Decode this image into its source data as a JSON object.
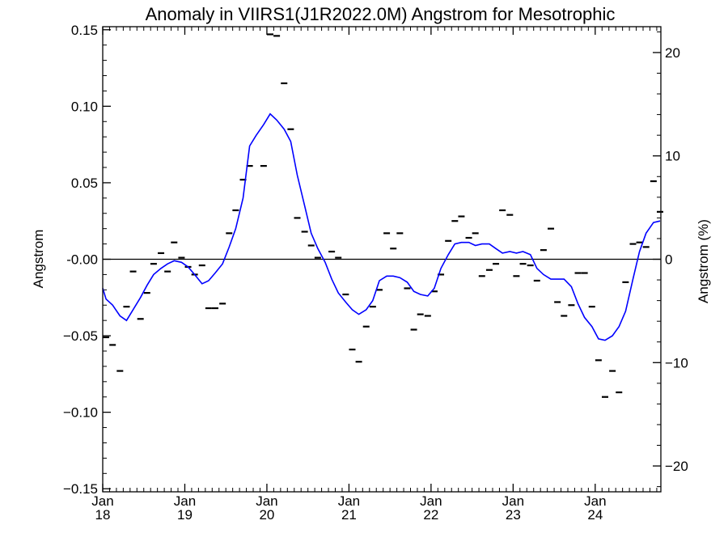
{
  "chart_data": {
    "type": "line",
    "title": "Anomaly in VIIRS1(J1R2022.0M) Angstrom for Mesotrophic",
    "ylabel_left": "Angstrom",
    "ylabel_right": "Angstrom (%)",
    "ylim": [
      -0.152,
      0.152
    ],
    "ylim_right": [
      -22.5,
      22.5
    ],
    "xlim": [
      2018.0,
      2024.8
    ],
    "left_ticks": [
      {
        "v": 0.15,
        "label": "0.15"
      },
      {
        "v": 0.1,
        "label": "0.10"
      },
      {
        "v": 0.05,
        "label": "0.05"
      },
      {
        "v": 0.0,
        "label": "-0.00"
      },
      {
        "v": -0.05,
        "label": "−0.05"
      },
      {
        "v": -0.1,
        "label": "−0.10"
      },
      {
        "v": -0.15,
        "label": "−0.15"
      }
    ],
    "right_ticks": [
      {
        "v": 20,
        "label": "20"
      },
      {
        "v": 10,
        "label": "10"
      },
      {
        "v": 0,
        "label": "0"
      },
      {
        "v": -10,
        "label": "−10"
      },
      {
        "v": -20,
        "label": "−20"
      }
    ],
    "x_ticks": [
      {
        "v": 2018,
        "line1": "Jan",
        "line2": "18"
      },
      {
        "v": 2019,
        "line1": "Jan",
        "line2": "19"
      },
      {
        "v": 2020,
        "line1": "Jan",
        "line2": "20"
      },
      {
        "v": 2021,
        "line1": "Jan",
        "line2": "21"
      },
      {
        "v": 2022,
        "line1": "Jan",
        "line2": "22"
      },
      {
        "v": 2023,
        "line1": "Jan",
        "line2": "23"
      },
      {
        "v": 2024,
        "line1": "Jan",
        "line2": "24"
      }
    ],
    "reference_line": 0,
    "series": [
      {
        "style": "markers",
        "color": "#000000",
        "points": [
          [
            2018.04,
            -0.051
          ],
          [
            2018.12,
            -0.056
          ],
          [
            2018.21,
            -0.073
          ],
          [
            2018.29,
            -0.031
          ],
          [
            2018.37,
            -0.008
          ],
          [
            2018.46,
            -0.039
          ],
          [
            2018.54,
            -0.022
          ],
          [
            2018.62,
            -0.003
          ],
          [
            2018.71,
            0.004
          ],
          [
            2018.79,
            -0.008
          ],
          [
            2018.87,
            0.011
          ],
          [
            2018.96,
            0.001
          ],
          [
            2019.04,
            -0.005
          ],
          [
            2019.12,
            -0.01
          ],
          [
            2019.21,
            -0.004
          ],
          [
            2019.29,
            -0.032
          ],
          [
            2019.37,
            -0.032
          ],
          [
            2019.46,
            -0.029
          ],
          [
            2019.54,
            0.017
          ],
          [
            2019.62,
            0.032
          ],
          [
            2019.71,
            0.052
          ],
          [
            2019.79,
            0.061
          ],
          [
            2019.96,
            0.061
          ],
          [
            2020.04,
            0.147
          ],
          [
            2020.12,
            0.146
          ],
          [
            2020.21,
            0.115
          ],
          [
            2020.29,
            0.085
          ],
          [
            2020.37,
            0.027
          ],
          [
            2020.46,
            0.018
          ],
          [
            2020.54,
            0.009
          ],
          [
            2020.62,
            0.001
          ],
          [
            2020.79,
            0.005
          ],
          [
            2020.87,
            0.001
          ],
          [
            2020.96,
            -0.023
          ],
          [
            2021.04,
            -0.059
          ],
          [
            2021.12,
            -0.067
          ],
          [
            2021.21,
            -0.044
          ],
          [
            2021.29,
            -0.031
          ],
          [
            2021.37,
            -0.02
          ],
          [
            2021.46,
            0.017
          ],
          [
            2021.54,
            0.007
          ],
          [
            2021.62,
            0.017
          ],
          [
            2021.71,
            -0.019
          ],
          [
            2021.79,
            -0.046
          ],
          [
            2021.87,
            -0.036
          ],
          [
            2021.96,
            -0.037
          ],
          [
            2022.04,
            -0.021
          ],
          [
            2022.12,
            -0.01
          ],
          [
            2022.21,
            0.012
          ],
          [
            2022.29,
            0.025
          ],
          [
            2022.37,
            0.028
          ],
          [
            2022.46,
            0.014
          ],
          [
            2022.54,
            0.017
          ],
          [
            2022.62,
            -0.011
          ],
          [
            2022.71,
            -0.007
          ],
          [
            2022.79,
            -0.003
          ],
          [
            2022.87,
            0.032
          ],
          [
            2022.96,
            0.029
          ],
          [
            2023.04,
            -0.011
          ],
          [
            2023.12,
            -0.003
          ],
          [
            2023.21,
            -0.004
          ],
          [
            2023.29,
            -0.014
          ],
          [
            2023.37,
            0.006
          ],
          [
            2023.46,
            0.02
          ],
          [
            2023.54,
            -0.028
          ],
          [
            2023.62,
            -0.037
          ],
          [
            2023.71,
            -0.03
          ],
          [
            2023.79,
            -0.009
          ],
          [
            2023.87,
            -0.009
          ],
          [
            2023.96,
            -0.031
          ],
          [
            2024.04,
            -0.066
          ],
          [
            2024.12,
            -0.09
          ],
          [
            2024.21,
            -0.073
          ],
          [
            2024.29,
            -0.087
          ],
          [
            2024.37,
            -0.015
          ],
          [
            2024.46,
            0.01
          ],
          [
            2024.54,
            0.011
          ],
          [
            2024.62,
            0.008
          ],
          [
            2024.71,
            0.051
          ],
          [
            2024.79,
            0.031
          ]
        ]
      },
      {
        "style": "line",
        "color": "#0000ff",
        "points": [
          [
            2018.0,
            -0.019
          ],
          [
            2018.04,
            -0.026
          ],
          [
            2018.12,
            -0.03
          ],
          [
            2018.21,
            -0.037
          ],
          [
            2018.29,
            -0.04
          ],
          [
            2018.37,
            -0.033
          ],
          [
            2018.46,
            -0.025
          ],
          [
            2018.54,
            -0.017
          ],
          [
            2018.62,
            -0.01
          ],
          [
            2018.71,
            -0.006
          ],
          [
            2018.79,
            -0.003
          ],
          [
            2018.87,
            -0.001
          ],
          [
            2018.96,
            -0.002
          ],
          [
            2019.04,
            -0.005
          ],
          [
            2019.12,
            -0.01
          ],
          [
            2019.21,
            -0.016
          ],
          [
            2019.29,
            -0.014
          ],
          [
            2019.37,
            -0.009
          ],
          [
            2019.46,
            -0.003
          ],
          [
            2019.54,
            0.008
          ],
          [
            2019.62,
            0.02
          ],
          [
            2019.71,
            0.04
          ],
          [
            2019.79,
            0.074
          ],
          [
            2019.87,
            0.081
          ],
          [
            2019.96,
            0.088
          ],
          [
            2020.04,
            0.095
          ],
          [
            2020.12,
            0.091
          ],
          [
            2020.21,
            0.085
          ],
          [
            2020.29,
            0.077
          ],
          [
            2020.37,
            0.055
          ],
          [
            2020.46,
            0.035
          ],
          [
            2020.54,
            0.017
          ],
          [
            2020.62,
            0.007
          ],
          [
            2020.71,
            -0.002
          ],
          [
            2020.79,
            -0.013
          ],
          [
            2020.87,
            -0.022
          ],
          [
            2020.96,
            -0.028
          ],
          [
            2021.04,
            -0.033
          ],
          [
            2021.12,
            -0.036
          ],
          [
            2021.21,
            -0.033
          ],
          [
            2021.29,
            -0.027
          ],
          [
            2021.37,
            -0.014
          ],
          [
            2021.46,
            -0.011
          ],
          [
            2021.54,
            -0.011
          ],
          [
            2021.62,
            -0.012
          ],
          [
            2021.71,
            -0.015
          ],
          [
            2021.79,
            -0.021
          ],
          [
            2021.87,
            -0.023
          ],
          [
            2021.96,
            -0.024
          ],
          [
            2022.04,
            -0.019
          ],
          [
            2022.12,
            -0.006
          ],
          [
            2022.21,
            0.003
          ],
          [
            2022.29,
            0.01
          ],
          [
            2022.37,
            0.011
          ],
          [
            2022.46,
            0.011
          ],
          [
            2022.54,
            0.009
          ],
          [
            2022.62,
            0.01
          ],
          [
            2022.71,
            0.01
          ],
          [
            2022.79,
            0.007
          ],
          [
            2022.87,
            0.004
          ],
          [
            2022.96,
            0.005
          ],
          [
            2023.04,
            0.004
          ],
          [
            2023.12,
            0.005
          ],
          [
            2023.21,
            0.003
          ],
          [
            2023.29,
            -0.006
          ],
          [
            2023.37,
            -0.01
          ],
          [
            2023.46,
            -0.013
          ],
          [
            2023.54,
            -0.013
          ],
          [
            2023.62,
            -0.013
          ],
          [
            2023.71,
            -0.018
          ],
          [
            2023.79,
            -0.029
          ],
          [
            2023.87,
            -0.038
          ],
          [
            2023.96,
            -0.044
          ],
          [
            2024.04,
            -0.052
          ],
          [
            2024.12,
            -0.053
          ],
          [
            2024.21,
            -0.05
          ],
          [
            2024.29,
            -0.044
          ],
          [
            2024.37,
            -0.034
          ],
          [
            2024.46,
            -0.013
          ],
          [
            2024.54,
            0.005
          ],
          [
            2024.62,
            0.017
          ],
          [
            2024.71,
            0.024
          ],
          [
            2024.79,
            0.025
          ]
        ]
      }
    ]
  }
}
